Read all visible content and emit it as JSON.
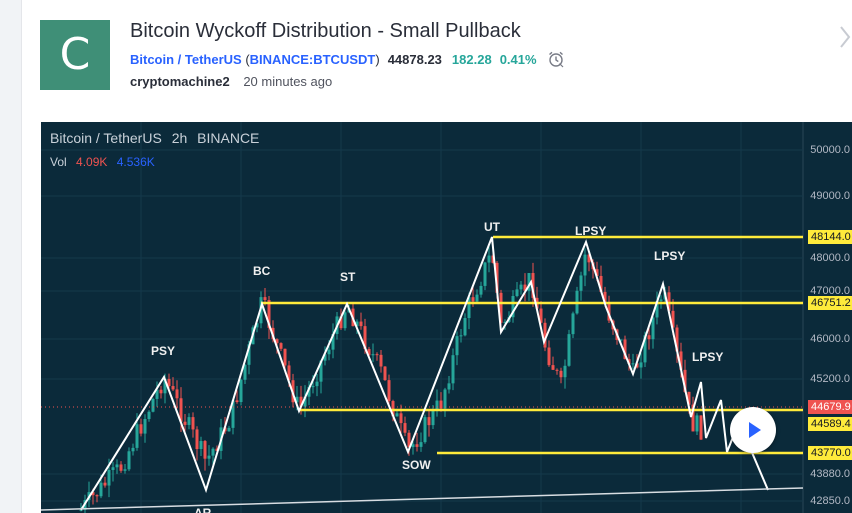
{
  "idea": {
    "avatar_letter": "C",
    "title": "Bitcoin Wyckoff Distribution - Small Pullback",
    "symbol_name": "Bitcoin / TetherUS",
    "symbol_ticker": "BINANCE:BTCUSDT",
    "price": "44878.23",
    "change": "182.28",
    "change_pct": "0.41%",
    "author": "cryptomachine2",
    "time_ago": "20 minutes ago"
  },
  "chart": {
    "legend": {
      "symbol": "Bitcoin / TetherUS",
      "interval": "2h",
      "exchange": "BINANCE"
    },
    "volume": {
      "label": "Vol",
      "sell": "4.09K",
      "buy": "4.536K"
    },
    "axis_ticks": [
      "50000.0",
      "49000.0",
      "48000.0",
      "47000.0",
      "46000.0",
      "45200.0",
      "43880.0",
      "42850.0"
    ],
    "price_tags": [
      {
        "text": "48144.0",
        "kind": "yellow"
      },
      {
        "text": "46751.2",
        "kind": "yellow"
      },
      {
        "text": "44679.9",
        "kind": "red"
      },
      {
        "text": "44589.4",
        "kind": "yellow"
      },
      {
        "text": "43770.0",
        "kind": "yellow"
      }
    ],
    "wyckoff_labels": [
      "PSY",
      "BC",
      "ST",
      "UT",
      "LPSY",
      "LPSY",
      "LPSY",
      "SOW",
      "AR"
    ],
    "colors": {
      "background": "#0b2a3a",
      "up": "#26a69a",
      "down": "#ef5350",
      "level": "#ffeb3b",
      "path": "#ffffff"
    }
  }
}
